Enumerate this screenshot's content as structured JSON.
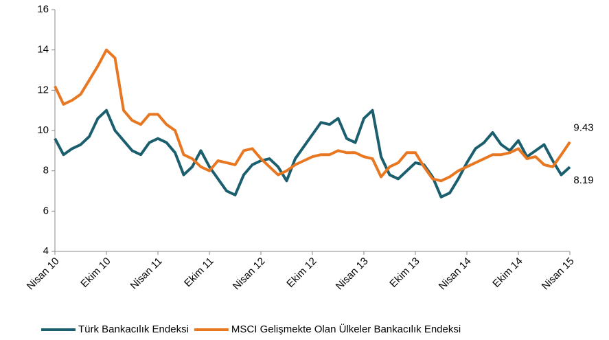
{
  "chart_data": {
    "type": "line",
    "categories": [
      "Nisan 10",
      null,
      null,
      null,
      null,
      null,
      "Ekim 10",
      null,
      null,
      null,
      null,
      null,
      "Nisan 11",
      null,
      null,
      null,
      null,
      null,
      "Ekim 11",
      null,
      null,
      null,
      null,
      null,
      "Nisan 12",
      null,
      null,
      null,
      null,
      null,
      "Ekim 12",
      null,
      null,
      null,
      null,
      null,
      "Nisan 13",
      null,
      null,
      null,
      null,
      null,
      "Ekim 13",
      null,
      null,
      null,
      null,
      null,
      "Nisan 14",
      null,
      null,
      null,
      null,
      null,
      "Ekim 14",
      null,
      null,
      null,
      null,
      null,
      "Nisan 15"
    ],
    "series": [
      {
        "name": "Türk Bankacılık Endeksi",
        "color": "#1b5e6e",
        "values": [
          9.6,
          8.8,
          9.1,
          9.3,
          9.7,
          10.6,
          11.0,
          10.0,
          9.5,
          9.0,
          8.8,
          9.4,
          9.6,
          9.4,
          8.9,
          7.8,
          8.2,
          9.0,
          8.2,
          7.6,
          7.0,
          6.8,
          7.8,
          8.3,
          8.5,
          8.6,
          8.2,
          7.5,
          8.6,
          9.2,
          9.8,
          10.4,
          10.3,
          10.6,
          9.6,
          9.4,
          10.6,
          11.0,
          8.7,
          7.8,
          7.6,
          8.0,
          8.4,
          8.3,
          7.7,
          6.7,
          6.9,
          7.6,
          8.4,
          9.1,
          9.4,
          9.9,
          9.3,
          9.0,
          9.5,
          8.7,
          9.0,
          9.3,
          8.5,
          7.8,
          8.19
        ]
      },
      {
        "name": "MSCI Gelişmekte Olan Ülkeler Bankacılık Endeksi",
        "color": "#e87722",
        "values": [
          12.2,
          11.3,
          11.5,
          11.8,
          12.5,
          13.2,
          14.0,
          13.6,
          11.0,
          10.5,
          10.3,
          10.8,
          10.8,
          10.3,
          10.0,
          8.8,
          8.6,
          8.2,
          8.0,
          8.5,
          8.4,
          8.3,
          9.0,
          9.1,
          8.6,
          8.2,
          7.8,
          8.0,
          8.3,
          8.5,
          8.7,
          8.8,
          8.8,
          9.0,
          8.9,
          8.9,
          8.7,
          8.6,
          7.7,
          8.2,
          8.4,
          8.9,
          8.9,
          8.2,
          7.6,
          7.5,
          7.7,
          8.0,
          8.2,
          8.4,
          8.6,
          8.8,
          8.8,
          8.9,
          9.1,
          8.6,
          8.7,
          8.3,
          8.2,
          8.8,
          9.43
        ]
      }
    ],
    "ylim": [
      4,
      16
    ],
    "yticks": [
      4,
      6,
      8,
      10,
      12,
      14,
      16
    ],
    "legend": "bottom"
  }
}
